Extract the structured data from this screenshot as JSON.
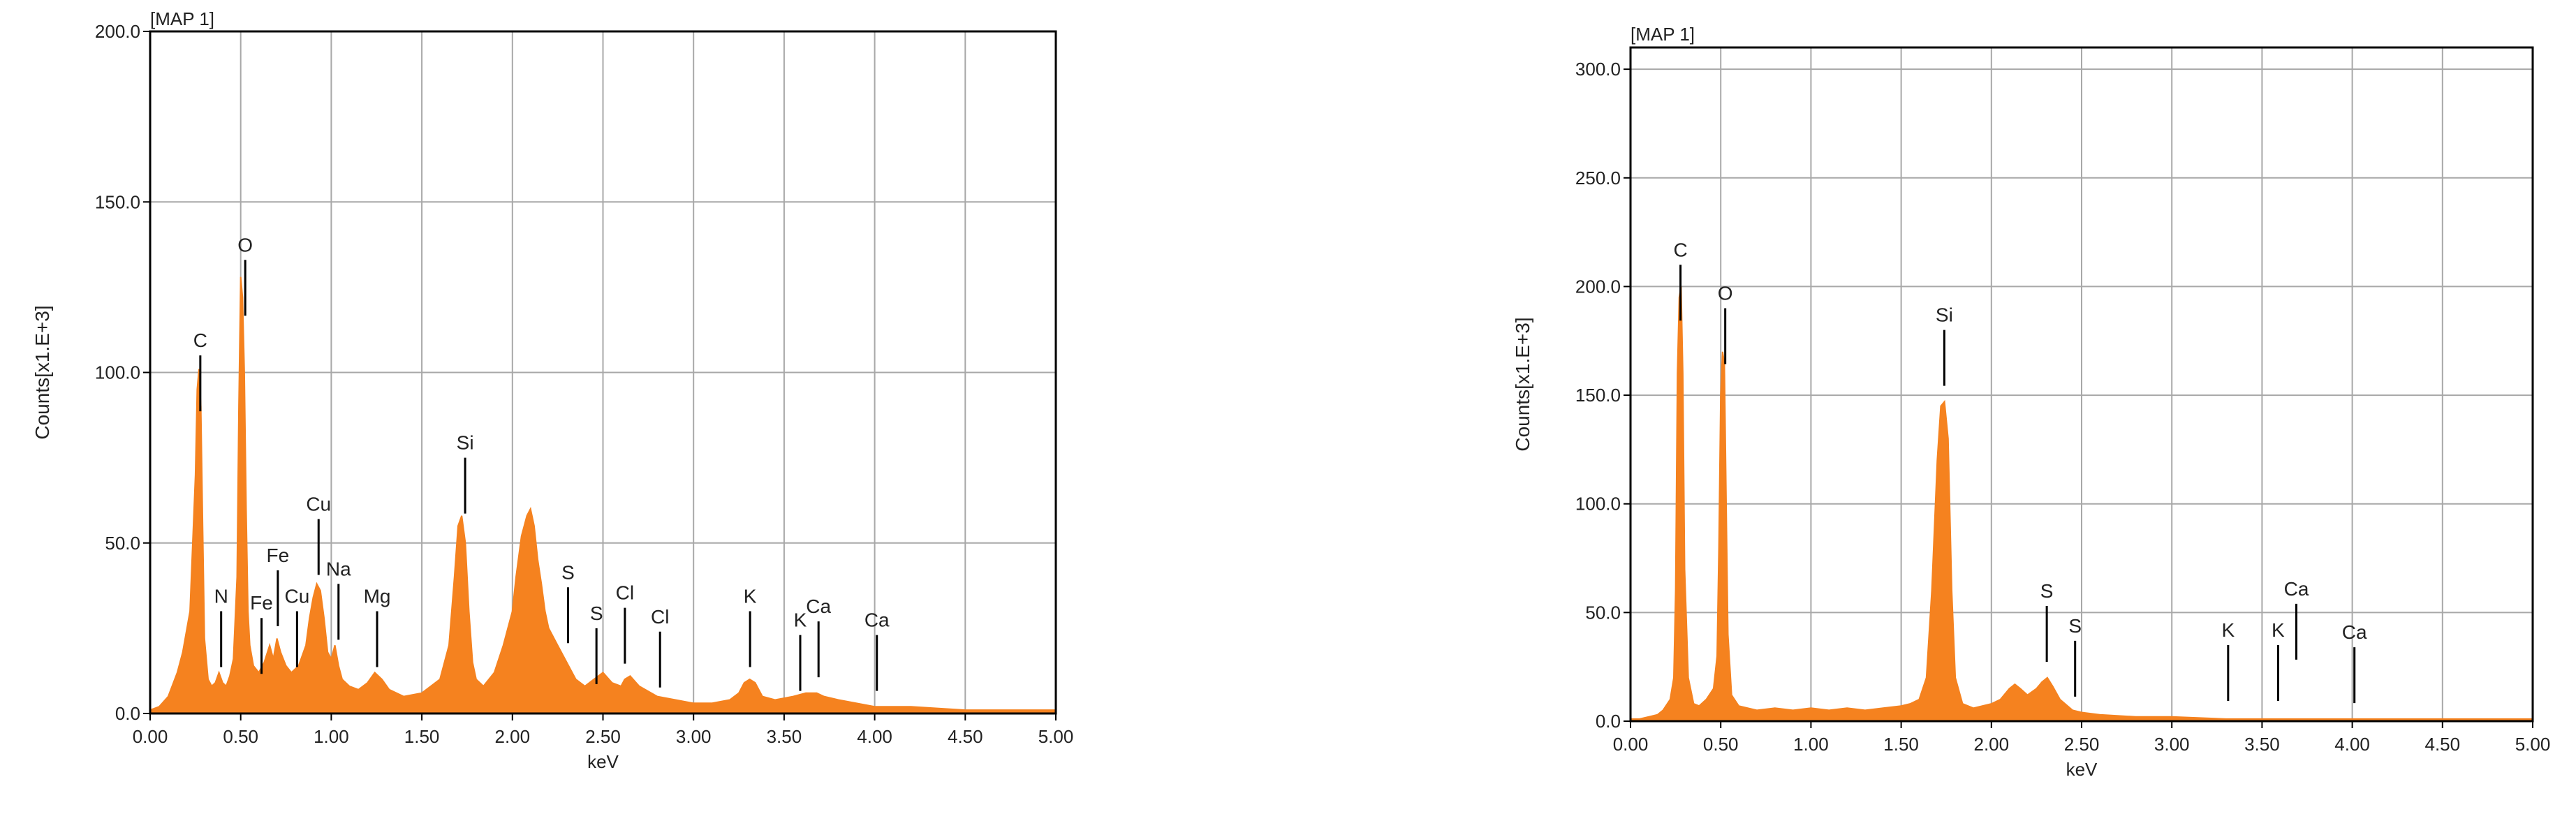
{
  "theme": {
    "spectrum_color": "#f5821f",
    "grid_color": "#a8a8a8",
    "frame_color": "#000000",
    "marker_color": "#000000"
  },
  "chart_data": [
    {
      "type": "area",
      "map_label": "[MAP 1]",
      "xlabel": "keV",
      "ylabel": "Counts[x1.E+3]",
      "xlim": [
        0,
        5
      ],
      "ylim": [
        0,
        200
      ],
      "xticks": [
        "0.00",
        "0.50",
        "1.00",
        "1.50",
        "2.00",
        "2.50",
        "3.00",
        "3.50",
        "4.00",
        "4.50",
        "5.00"
      ],
      "yticks": [
        "0.0",
        "50.0",
        "100.0",
        "150.0",
        "200.0"
      ],
      "grid": true,
      "spectrum": {
        "x": [
          0.0,
          0.05,
          0.1,
          0.15,
          0.18,
          0.22,
          0.25,
          0.26,
          0.27,
          0.28,
          0.29,
          0.3,
          0.32,
          0.34,
          0.36,
          0.38,
          0.4,
          0.42,
          0.44,
          0.46,
          0.48,
          0.49,
          0.5,
          0.51,
          0.52,
          0.53,
          0.54,
          0.55,
          0.57,
          0.6,
          0.63,
          0.66,
          0.68,
          0.7,
          0.72,
          0.75,
          0.78,
          0.82,
          0.86,
          0.88,
          0.9,
          0.92,
          0.94,
          0.96,
          0.98,
          1.0,
          1.02,
          1.04,
          1.06,
          1.1,
          1.15,
          1.2,
          1.24,
          1.28,
          1.32,
          1.4,
          1.5,
          1.6,
          1.65,
          1.68,
          1.7,
          1.72,
          1.74,
          1.76,
          1.78,
          1.8,
          1.84,
          1.9,
          1.95,
          2.0,
          2.02,
          2.05,
          2.08,
          2.1,
          2.12,
          2.14,
          2.16,
          2.18,
          2.2,
          2.25,
          2.3,
          2.35,
          2.4,
          2.45,
          2.5,
          2.55,
          2.6,
          2.62,
          2.65,
          2.7,
          2.8,
          2.9,
          3.0,
          3.1,
          3.2,
          3.25,
          3.28,
          3.31,
          3.34,
          3.38,
          3.45,
          3.55,
          3.62,
          3.68,
          3.72,
          3.8,
          3.9,
          4.0,
          4.05,
          4.2,
          4.5,
          4.8,
          5.0
        ],
        "y": [
          1,
          2,
          5,
          12,
          18,
          30,
          70,
          95,
          101,
          90,
          55,
          22,
          10,
          8,
          9,
          12,
          9,
          8,
          11,
          16,
          40,
          90,
          128,
          122,
          100,
          60,
          30,
          20,
          14,
          12,
          15,
          20,
          16,
          22,
          18,
          14,
          12,
          14,
          20,
          28,
          34,
          38,
          36,
          28,
          18,
          16,
          20,
          14,
          10,
          8,
          7,
          9,
          12,
          10,
          7,
          5,
          6,
          10,
          20,
          40,
          55,
          58,
          50,
          30,
          15,
          10,
          8,
          12,
          20,
          30,
          40,
          52,
          58,
          60,
          55,
          45,
          38,
          30,
          25,
          20,
          15,
          10,
          8,
          10,
          12,
          9,
          8,
          10,
          11,
          8,
          5,
          4,
          3,
          3,
          4,
          6,
          9,
          10,
          9,
          5,
          4,
          5,
          6,
          6,
          5,
          4,
          3,
          2,
          2,
          2,
          1,
          1,
          1
        ]
      },
      "peak_markers": [
        {
          "label": "C",
          "x": 0.277,
          "y": 105
        },
        {
          "label": "O",
          "x": 0.525,
          "y": 133
        },
        {
          "label": "Cu",
          "x": 0.93,
          "y": 57
        },
        {
          "label": "Fe",
          "x": 0.705,
          "y": 42
        },
        {
          "label": "Na",
          "x": 1.04,
          "y": 38
        },
        {
          "label": "N",
          "x": 0.392,
          "y": 30
        },
        {
          "label": "Fe",
          "x": 0.615,
          "y": 28
        },
        {
          "label": "Cu",
          "x": 0.811,
          "y": 30
        },
        {
          "label": "Mg",
          "x": 1.253,
          "y": 30
        },
        {
          "label": "Si",
          "x": 1.739,
          "y": 75
        },
        {
          "label": "S",
          "x": 2.307,
          "y": 37
        },
        {
          "label": "S",
          "x": 2.464,
          "y": 25
        },
        {
          "label": "Cl",
          "x": 2.621,
          "y": 31
        },
        {
          "label": "Cl",
          "x": 2.815,
          "y": 24
        },
        {
          "label": "K",
          "x": 3.312,
          "y": 30
        },
        {
          "label": "Ca",
          "x": 3.69,
          "y": 27
        },
        {
          "label": "K",
          "x": 3.589,
          "y": 23
        },
        {
          "label": "Ca",
          "x": 4.012,
          "y": 23
        }
      ]
    },
    {
      "type": "area",
      "map_label": "[MAP 1]",
      "xlabel": "keV",
      "ylabel": "Counts[x1.E+3]",
      "xlim": [
        0,
        5
      ],
      "ylim": [
        0,
        310
      ],
      "xticks": [
        "0.00",
        "0.50",
        "1.00",
        "1.50",
        "2.00",
        "2.50",
        "3.00",
        "3.50",
        "4.00",
        "4.50",
        "5.00"
      ],
      "yticks": [
        "0.0",
        "50.0",
        "100.0",
        "150.0",
        "200.0",
        "250.0",
        "300.0"
      ],
      "grid": true,
      "spectrum": {
        "x": [
          0.0,
          0.05,
          0.1,
          0.15,
          0.18,
          0.22,
          0.24,
          0.25,
          0.26,
          0.27,
          0.28,
          0.29,
          0.3,
          0.32,
          0.35,
          0.38,
          0.42,
          0.46,
          0.48,
          0.49,
          0.5,
          0.51,
          0.52,
          0.53,
          0.54,
          0.56,
          0.6,
          0.7,
          0.8,
          0.9,
          1.0,
          1.1,
          1.2,
          1.3,
          1.4,
          1.5,
          1.55,
          1.6,
          1.64,
          1.67,
          1.7,
          1.72,
          1.74,
          1.76,
          1.78,
          1.8,
          1.84,
          1.9,
          2.0,
          2.05,
          2.1,
          2.13,
          2.16,
          2.2,
          2.25,
          2.28,
          2.31,
          2.34,
          2.38,
          2.45,
          2.5,
          2.6,
          2.8,
          3.0,
          3.3,
          3.6,
          4.0,
          4.5,
          5.0
        ],
        "y": [
          1,
          1,
          2,
          3,
          5,
          10,
          20,
          60,
          160,
          195,
          200,
          160,
          70,
          20,
          8,
          7,
          10,
          15,
          30,
          80,
          150,
          170,
          165,
          100,
          40,
          12,
          7,
          5,
          6,
          5,
          6,
          5,
          6,
          5,
          6,
          7,
          8,
          10,
          20,
          60,
          120,
          145,
          147,
          130,
          60,
          20,
          8,
          6,
          8,
          10,
          15,
          17,
          15,
          12,
          15,
          18,
          20,
          16,
          10,
          5,
          4,
          3,
          2,
          2,
          1,
          1,
          1,
          1,
          1
        ]
      },
      "peak_markers": [
        {
          "label": "C",
          "x": 0.277,
          "y": 210
        },
        {
          "label": "O",
          "x": 0.525,
          "y": 190
        },
        {
          "label": "Si",
          "x": 1.739,
          "y": 180
        },
        {
          "label": "S",
          "x": 2.307,
          "y": 53
        },
        {
          "label": "S",
          "x": 2.464,
          "y": 37
        },
        {
          "label": "K",
          "x": 3.312,
          "y": 35
        },
        {
          "label": "Ca",
          "x": 3.69,
          "y": 54
        },
        {
          "label": "K",
          "x": 3.589,
          "y": 35
        },
        {
          "label": "Ca",
          "x": 4.012,
          "y": 34
        }
      ]
    }
  ]
}
